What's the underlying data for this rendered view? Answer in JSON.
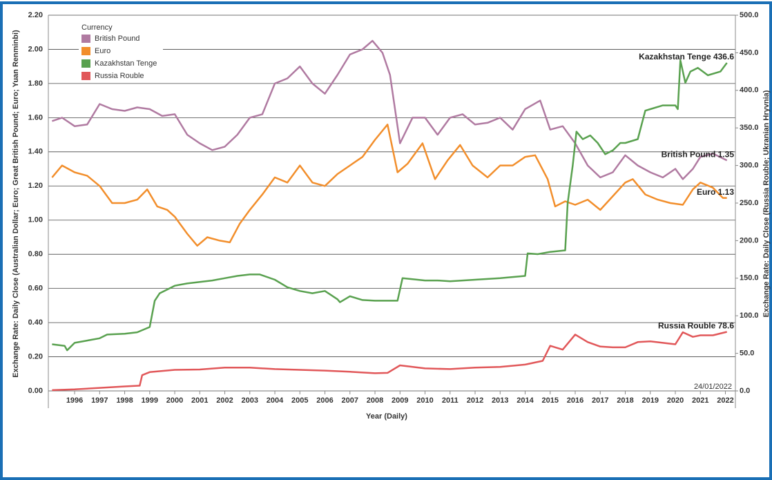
{
  "chart_data": {
    "type": "line",
    "xlabel": "Year (Daily)",
    "ylabel": "Exchange Rate: Daily Close (Australian Dollar; Euro; Great British Pound; Euro; Yuan Renminbi)",
    "y2label": "Exchange Rate: Daily Close (Russia Rouble; Ukranian Hryvnia)",
    "legend_title": "Currency",
    "legend": "upper left",
    "grid": true,
    "annotation": "24/01/2022",
    "xlim": [
      1994.95,
      2022.4
    ],
    "xticks": [
      1996,
      1997,
      1998,
      1999,
      2000,
      2001,
      2002,
      2003,
      2004,
      2005,
      2006,
      2007,
      2008,
      2009,
      2010,
      2011,
      2012,
      2013,
      2014,
      2015,
      2016,
      2017,
      2018,
      2019,
      2020,
      2021,
      2022
    ],
    "ylim": [
      0,
      2.2
    ],
    "yticks": [
      {
        "value": 0,
        "label": "0.00"
      },
      {
        "value": 0.2,
        "label": "0.20"
      },
      {
        "value": 0.4,
        "label": "0.40"
      },
      {
        "value": 0.6,
        "label": "0.60"
      },
      {
        "value": 0.8,
        "label": "0.80"
      },
      {
        "value": 1,
        "label": "1.00"
      },
      {
        "value": 1.2,
        "label": "1.20"
      },
      {
        "value": 1.4,
        "label": "1.40"
      },
      {
        "value": 1.6,
        "label": "1.60"
      },
      {
        "value": 1.8,
        "label": "1.80"
      },
      {
        "value": 2,
        "label": "2.00"
      },
      {
        "value": 2.2,
        "label": "2.20"
      }
    ],
    "y2lim": [
      0,
      500
    ],
    "y2ticks": [
      {
        "value": 0,
        "label": "0.0"
      },
      {
        "value": 50,
        "label": "50.0"
      },
      {
        "value": 100,
        "label": "100.0"
      },
      {
        "value": 150,
        "label": "150.0"
      },
      {
        "value": 200,
        "label": "200.0"
      },
      {
        "value": 250,
        "label": "250.0"
      },
      {
        "value": 300,
        "label": "300.0"
      },
      {
        "value": 350,
        "label": "350.0"
      },
      {
        "value": 400,
        "label": "400.0"
      },
      {
        "value": 450,
        "label": "450.0"
      },
      {
        "value": 500,
        "label": "500.0"
      }
    ],
    "series": [
      {
        "name": "British Pound",
        "color": "#b07aa1",
        "end_label": "British Pound 1.35",
        "x": [
          1995.1,
          1995.5,
          1996,
          1996.5,
          1997,
          1997.5,
          1998,
          1998.5,
          1999,
          1999.5,
          2000,
          2000.5,
          2001,
          2001.5,
          2002,
          2002.5,
          2003,
          2003.5,
          2004,
          2004.5,
          2005,
          2005.5,
          2006,
          2006.5,
          2007,
          2007.5,
          2007.9,
          2008.3,
          2008.6,
          2009,
          2009.5,
          2010,
          2010.5,
          2011,
          2011.5,
          2012,
          2012.5,
          2013,
          2013.5,
          2014,
          2014.6,
          2015,
          2015.5,
          2016,
          2016.5,
          2017,
          2017.5,
          2018,
          2018.5,
          2019,
          2019.5,
          2020,
          2020.3,
          2020.7,
          2021,
          2021.5,
          2022.06
        ],
        "values": [
          1.58,
          1.6,
          1.55,
          1.56,
          1.68,
          1.65,
          1.64,
          1.66,
          1.65,
          1.61,
          1.62,
          1.5,
          1.45,
          1.41,
          1.43,
          1.5,
          1.6,
          1.62,
          1.8,
          1.83,
          1.9,
          1.8,
          1.74,
          1.85,
          1.97,
          2.0,
          2.05,
          1.98,
          1.85,
          1.45,
          1.6,
          1.6,
          1.5,
          1.6,
          1.62,
          1.56,
          1.57,
          1.6,
          1.53,
          1.65,
          1.7,
          1.53,
          1.55,
          1.45,
          1.32,
          1.25,
          1.28,
          1.38,
          1.32,
          1.28,
          1.25,
          1.3,
          1.24,
          1.3,
          1.37,
          1.39,
          1.35
        ]
      },
      {
        "name": "Euro",
        "color": "#f28e2b",
        "end_label": "Euro 1.13",
        "x": [
          1995.1,
          1995.5,
          1996,
          1996.5,
          1997,
          1997.5,
          1998,
          1998.5,
          1998.9,
          1999.3,
          1999.7,
          2000,
          2000.5,
          2000.9,
          2001.3,
          2001.8,
          2002.2,
          2002.6,
          2003,
          2003.5,
          2004,
          2004.5,
          2005,
          2005.5,
          2006,
          2006.5,
          2007,
          2007.5,
          2008,
          2008.5,
          2008.9,
          2009.3,
          2009.9,
          2010.4,
          2010.9,
          2011.4,
          2011.9,
          2012.5,
          2013,
          2013.5,
          2014,
          2014.4,
          2014.9,
          2015.2,
          2015.6,
          2016,
          2016.5,
          2017,
          2017.5,
          2018,
          2018.3,
          2018.8,
          2019.3,
          2019.8,
          2020.3,
          2020.7,
          2021,
          2021.5,
          2021.9,
          2022.06
        ],
        "values": [
          1.25,
          1.32,
          1.28,
          1.26,
          1.2,
          1.1,
          1.1,
          1.12,
          1.18,
          1.08,
          1.06,
          1.02,
          0.92,
          0.85,
          0.9,
          0.88,
          0.87,
          0.98,
          1.06,
          1.15,
          1.25,
          1.22,
          1.32,
          1.22,
          1.2,
          1.27,
          1.32,
          1.37,
          1.47,
          1.56,
          1.28,
          1.33,
          1.45,
          1.24,
          1.35,
          1.44,
          1.32,
          1.25,
          1.32,
          1.32,
          1.37,
          1.38,
          1.24,
          1.08,
          1.11,
          1.09,
          1.12,
          1.06,
          1.14,
          1.22,
          1.24,
          1.15,
          1.12,
          1.1,
          1.09,
          1.18,
          1.22,
          1.19,
          1.13,
          1.13
        ]
      },
      {
        "name": "Kazakhstan Tenge",
        "color": "#59a14f",
        "axis": "y2",
        "end_label": "Kazakhstan Tenge 436.6",
        "x": [
          1995.1,
          1995.6,
          1995.7,
          1996,
          1996.5,
          1997,
          1997.3,
          1998,
          1998.5,
          1999,
          1999.2,
          1999.4,
          2000,
          2000.5,
          2001,
          2001.5,
          2002,
          2002.5,
          2003,
          2003.4,
          2004,
          2004.5,
          2005,
          2005.5,
          2006,
          2006.5,
          2006.6,
          2007,
          2007.5,
          2008,
          2008.9,
          2009.1,
          2010,
          2010.5,
          2011,
          2012,
          2013,
          2014,
          2014.1,
          2014.5,
          2015,
          2015.6,
          2015.7,
          2015.9,
          2016.05,
          2016.3,
          2016.6,
          2016.9,
          2017.2,
          2017.5,
          2017.8,
          2018,
          2018.5,
          2018.8,
          2019,
          2019.5,
          2020,
          2020.1,
          2020.2,
          2020.4,
          2020.6,
          2020.9,
          2021.3,
          2021.8,
          2022.06
        ],
        "values": [
          62,
          60,
          54,
          64,
          67,
          70,
          75,
          76,
          78,
          85,
          120,
          130,
          140,
          143,
          145,
          147,
          150,
          153,
          155,
          155,
          148,
          138,
          133,
          130,
          133,
          122,
          118,
          126,
          121,
          120,
          120,
          150,
          147,
          147,
          146,
          148,
          150,
          153,
          183,
          182,
          185,
          187,
          250,
          300,
          345,
          335,
          340,
          330,
          315,
          320,
          330,
          330,
          335,
          373,
          375,
          380,
          380,
          375,
          440,
          410,
          425,
          430,
          420,
          425,
          436.6
        ]
      },
      {
        "name": "Russia Rouble",
        "color": "#e15759",
        "axis": "y2",
        "end_label": "Russia Rouble 78.6",
        "x": [
          1995.1,
          1996,
          1997,
          1998,
          1998.6,
          1998.7,
          1999,
          2000,
          2001,
          2002,
          2003,
          2004,
          2005,
          2006,
          2007,
          2008,
          2008.5,
          2009,
          2010,
          2011,
          2012,
          2013,
          2014,
          2014.7,
          2015,
          2015.5,
          2016,
          2016.5,
          2017,
          2017.5,
          2018,
          2018.5,
          2019,
          2019.5,
          2020,
          2020.3,
          2020.7,
          2021,
          2021.5,
          2022.06
        ],
        "values": [
          1,
          2,
          4,
          6,
          7,
          21,
          25,
          28,
          28.5,
          31,
          31,
          29,
          28,
          27,
          25.5,
          23.5,
          24,
          34,
          30,
          29,
          31,
          32,
          35,
          40,
          60,
          55,
          75,
          65,
          59,
          58,
          58,
          65,
          66,
          64,
          62,
          78,
          72,
          74,
          74,
          78.6
        ]
      }
    ]
  }
}
